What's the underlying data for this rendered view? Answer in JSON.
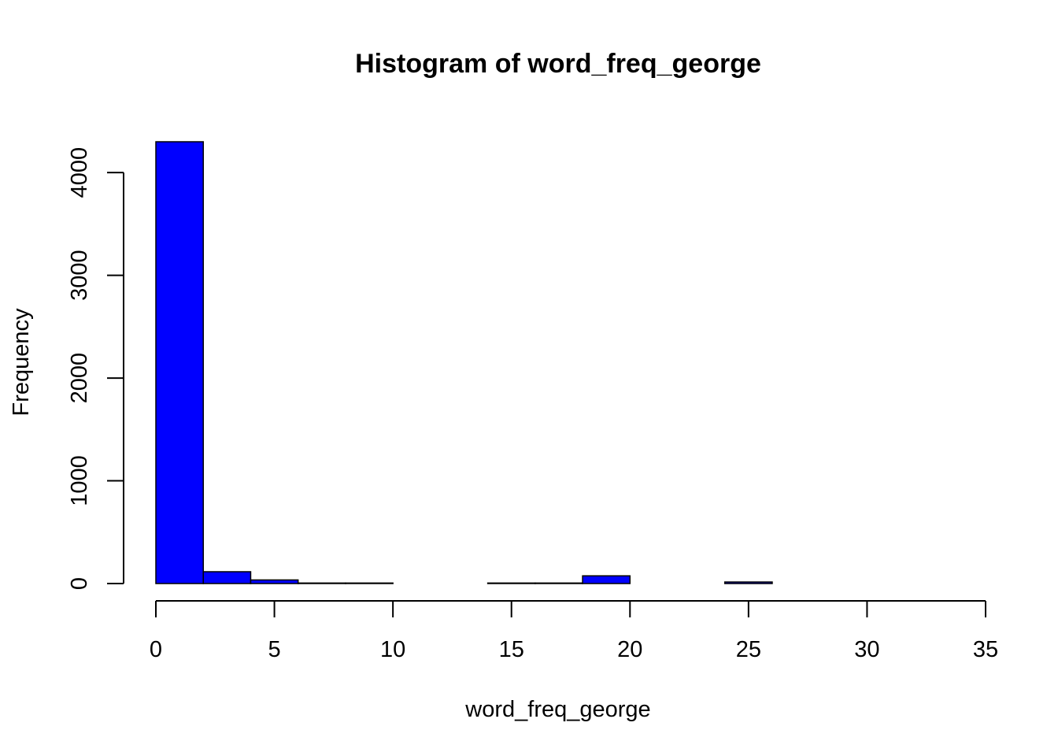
{
  "chart_data": {
    "type": "bar",
    "title": "Histogram of word_freq_george",
    "xlabel": "word_freq_george",
    "ylabel": "Frequency",
    "bin_edges": [
      0,
      2,
      4,
      6,
      8,
      10,
      12,
      14,
      16,
      18,
      20,
      22,
      24,
      26,
      28,
      30,
      32,
      34
    ],
    "values": [
      4300,
      115,
      35,
      5,
      5,
      0,
      0,
      5,
      5,
      75,
      0,
      0,
      15,
      0,
      0,
      0,
      0
    ],
    "xlim": [
      0,
      35
    ],
    "ylim": [
      0,
      4300
    ],
    "x_ticks": [
      0,
      5,
      10,
      15,
      20,
      25,
      30,
      35
    ],
    "x_tick_labels": [
      "0",
      "5",
      "10",
      "15",
      "20",
      "25",
      "30",
      "35"
    ],
    "y_ticks": [
      0,
      1000,
      2000,
      3000,
      4000
    ],
    "y_tick_labels": [
      "0",
      "1000",
      "2000",
      "3000",
      "4000"
    ],
    "bar_color": "#0000FF",
    "border_color": "#000000",
    "grid": false,
    "legend": "none"
  }
}
